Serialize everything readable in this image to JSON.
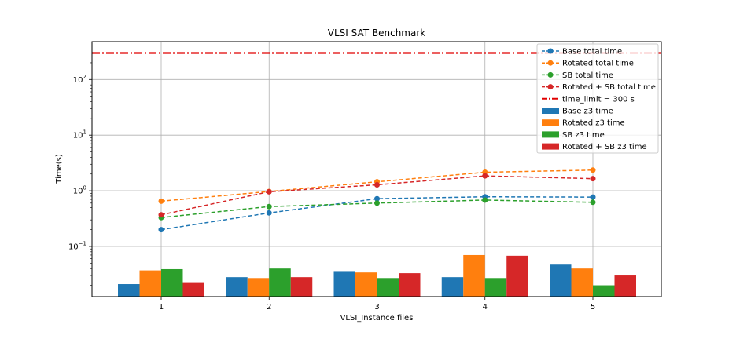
{
  "chart_data": {
    "type": "bar",
    "title": "VLSI SAT Benchmark",
    "xlabel": "VLSI_Instance files",
    "ylabel": "Time(s)",
    "yscale": "log",
    "ylim": [
      0.0125,
      480
    ],
    "grid": true,
    "legend_position": "top-right",
    "categories": [
      "1",
      "2",
      "3",
      "4",
      "5"
    ],
    "y_ticks": [
      {
        "value": 0.1,
        "base": "10",
        "exp": "−1"
      },
      {
        "value": 1,
        "base": "10",
        "exp": "0"
      },
      {
        "value": 10,
        "base": "10",
        "exp": "1"
      },
      {
        "value": 100,
        "base": "10",
        "exp": "2"
      }
    ],
    "bar_series": [
      {
        "name": "Base z3 time",
        "color": "#1f77b4",
        "values": [
          0.021,
          0.028,
          0.036,
          0.028,
          0.047
        ]
      },
      {
        "name": "Rotated z3 time",
        "color": "#ff7f0e",
        "values": [
          0.037,
          0.027,
          0.034,
          0.07,
          0.04
        ]
      },
      {
        "name": "SB z3 time",
        "color": "#2ca02c",
        "values": [
          0.039,
          0.04,
          0.027,
          0.027,
          0.02
        ]
      },
      {
        "name": "Rotated + SB z3 time",
        "color": "#d62728",
        "values": [
          0.022,
          0.028,
          0.033,
          0.068,
          0.03
        ]
      }
    ],
    "line_series": [
      {
        "name": "Base total time",
        "color": "#1f77b4",
        "values": [
          0.2,
          0.4,
          0.72,
          0.78,
          0.77
        ]
      },
      {
        "name": "Rotated total time",
        "color": "#ff7f0e",
        "values": [
          0.65,
          0.97,
          1.45,
          2.15,
          2.35
        ]
      },
      {
        "name": "SB total time",
        "color": "#2ca02c",
        "values": [
          0.33,
          0.52,
          0.6,
          0.68,
          0.62
        ]
      },
      {
        "name": "Rotated + SB total time",
        "color": "#d62728",
        "values": [
          0.37,
          0.96,
          1.28,
          1.85,
          1.65
        ]
      }
    ],
    "reference_line": {
      "name": "time_limit = 300 s",
      "value": 300,
      "color": "#e00000"
    }
  }
}
